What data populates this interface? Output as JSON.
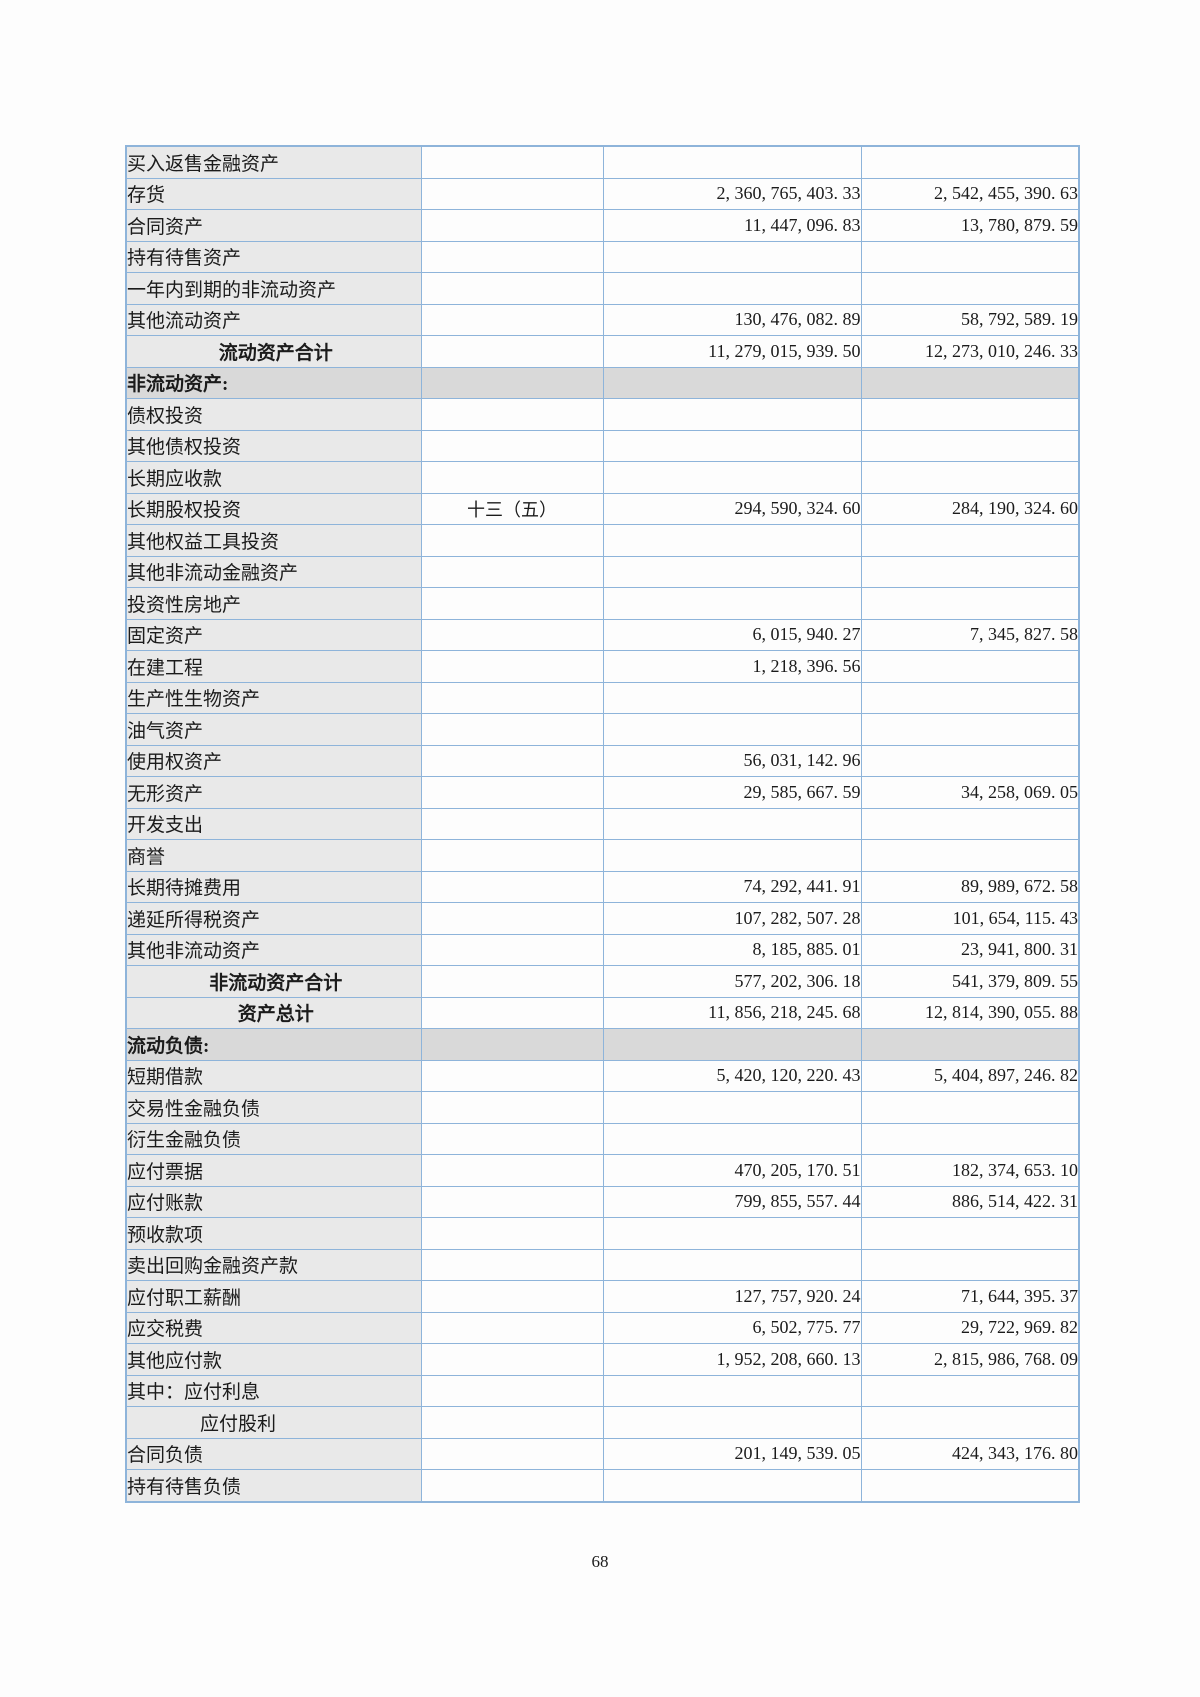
{
  "page": {
    "number": "68",
    "background_color": "#fdfdfd"
  },
  "table": {
    "name": "balance-sheet",
    "border_color": "#8eb4da",
    "item_cell_bg": "#e9e9e9",
    "section_row_bg": "#d9d9d9",
    "columns": [
      "item",
      "note",
      "current_amount",
      "previous_amount"
    ],
    "rows": [
      {
        "style": "item",
        "indent": false,
        "label": "买入返售金融资产",
        "note": "",
        "current": "",
        "previous": ""
      },
      {
        "style": "item",
        "indent": false,
        "label": "存货",
        "note": "",
        "current": "2, 360, 765, 403. 33",
        "previous": "2, 542, 455, 390. 63"
      },
      {
        "style": "item",
        "indent": false,
        "label": "合同资产",
        "note": "",
        "current": "11, 447, 096. 83",
        "previous": "13, 780, 879. 59"
      },
      {
        "style": "item",
        "indent": false,
        "label": "持有待售资产",
        "note": "",
        "current": "",
        "previous": ""
      },
      {
        "style": "item",
        "indent": false,
        "label": "一年内到期的非流动资产",
        "note": "",
        "current": "",
        "previous": ""
      },
      {
        "style": "item",
        "indent": false,
        "label": "其他流动资产",
        "note": "",
        "current": "130, 476, 082. 89",
        "previous": "58, 792, 589. 19"
      },
      {
        "style": "total",
        "indent": false,
        "label": "流动资产合计",
        "note": "",
        "current": "11, 279, 015, 939. 50",
        "previous": "12, 273, 010, 246. 33"
      },
      {
        "style": "section",
        "indent": false,
        "label": "非流动资产:",
        "note": "",
        "current": "",
        "previous": ""
      },
      {
        "style": "item",
        "indent": false,
        "label": "债权投资",
        "note": "",
        "current": "",
        "previous": ""
      },
      {
        "style": "item",
        "indent": false,
        "label": "其他债权投资",
        "note": "",
        "current": "",
        "previous": ""
      },
      {
        "style": "item",
        "indent": false,
        "label": "长期应收款",
        "note": "",
        "current": "",
        "previous": ""
      },
      {
        "style": "item",
        "indent": false,
        "label": "长期股权投资",
        "note": "十三（五）",
        "current": "294, 590, 324. 60",
        "previous": "284, 190, 324. 60"
      },
      {
        "style": "item",
        "indent": false,
        "label": "其他权益工具投资",
        "note": "",
        "current": "",
        "previous": ""
      },
      {
        "style": "item",
        "indent": false,
        "label": "其他非流动金融资产",
        "note": "",
        "current": "",
        "previous": ""
      },
      {
        "style": "item",
        "indent": false,
        "label": "投资性房地产",
        "note": "",
        "current": "",
        "previous": ""
      },
      {
        "style": "item",
        "indent": false,
        "label": "固定资产",
        "note": "",
        "current": "6, 015, 940. 27",
        "previous": "7, 345, 827. 58"
      },
      {
        "style": "item",
        "indent": false,
        "label": "在建工程",
        "note": "",
        "current": "1, 218, 396. 56",
        "previous": ""
      },
      {
        "style": "item",
        "indent": false,
        "label": "生产性生物资产",
        "note": "",
        "current": "",
        "previous": ""
      },
      {
        "style": "item",
        "indent": false,
        "label": "油气资产",
        "note": "",
        "current": "",
        "previous": ""
      },
      {
        "style": "item",
        "indent": false,
        "label": "使用权资产",
        "note": "",
        "current": "56, 031, 142. 96",
        "previous": ""
      },
      {
        "style": "item",
        "indent": false,
        "label": "无形资产",
        "note": "",
        "current": "29, 585, 667. 59",
        "previous": "34, 258, 069. 05"
      },
      {
        "style": "item",
        "indent": false,
        "label": "开发支出",
        "note": "",
        "current": "",
        "previous": ""
      },
      {
        "style": "item",
        "indent": false,
        "label": "商誉",
        "note": "",
        "current": "",
        "previous": ""
      },
      {
        "style": "item",
        "indent": false,
        "label": "长期待摊费用",
        "note": "",
        "current": "74, 292, 441. 91",
        "previous": "89, 989, 672. 58"
      },
      {
        "style": "item",
        "indent": false,
        "label": "递延所得税资产",
        "note": "",
        "current": "107, 282, 507. 28",
        "previous": "101, 654, 115. 43"
      },
      {
        "style": "item",
        "indent": false,
        "label": "其他非流动资产",
        "note": "",
        "current": "8, 185, 885. 01",
        "previous": "23, 941, 800. 31"
      },
      {
        "style": "total",
        "indent": false,
        "label": "非流动资产合计",
        "note": "",
        "current": "577, 202, 306. 18",
        "previous": "541, 379, 809. 55"
      },
      {
        "style": "total",
        "indent": false,
        "label": "资产总计",
        "note": "",
        "current": "11, 856, 218, 245. 68",
        "previous": "12, 814, 390, 055. 88"
      },
      {
        "style": "section",
        "indent": false,
        "label": "流动负债:",
        "note": "",
        "current": "",
        "previous": ""
      },
      {
        "style": "item",
        "indent": false,
        "label": "短期借款",
        "note": "",
        "current": "5, 420, 120, 220. 43",
        "previous": "5, 404, 897, 246. 82"
      },
      {
        "style": "item",
        "indent": false,
        "label": "交易性金融负债",
        "note": "",
        "current": "",
        "previous": ""
      },
      {
        "style": "item",
        "indent": false,
        "label": "衍生金融负债",
        "note": "",
        "current": "",
        "previous": ""
      },
      {
        "style": "item",
        "indent": false,
        "label": "应付票据",
        "note": "",
        "current": "470, 205, 170. 51",
        "previous": "182, 374, 653. 10"
      },
      {
        "style": "item",
        "indent": false,
        "label": "应付账款",
        "note": "",
        "current": "799, 855, 557. 44",
        "previous": "886, 514, 422. 31"
      },
      {
        "style": "item",
        "indent": false,
        "label": "预收款项",
        "note": "",
        "current": "",
        "previous": ""
      },
      {
        "style": "item",
        "indent": false,
        "label": "卖出回购金融资产款",
        "note": "",
        "current": "",
        "previous": ""
      },
      {
        "style": "item",
        "indent": false,
        "label": "应付职工薪酬",
        "note": "",
        "current": "127, 757, 920. 24",
        "previous": "71, 644, 395. 37"
      },
      {
        "style": "item",
        "indent": false,
        "label": "应交税费",
        "note": "",
        "current": "6, 502, 775. 77",
        "previous": "29, 722, 969. 82"
      },
      {
        "style": "item",
        "indent": false,
        "label": "其他应付款",
        "note": "",
        "current": "1, 952, 208, 660. 13",
        "previous": "2, 815, 986, 768. 09"
      },
      {
        "style": "item",
        "indent": false,
        "label": "其中：应付利息",
        "note": "",
        "current": "",
        "previous": ""
      },
      {
        "style": "item",
        "indent": true,
        "label": "应付股利",
        "note": "",
        "current": "",
        "previous": ""
      },
      {
        "style": "item",
        "indent": false,
        "label": "合同负债",
        "note": "",
        "current": "201, 149, 539. 05",
        "previous": "424, 343, 176. 80"
      },
      {
        "style": "item",
        "indent": false,
        "label": "持有待售负债",
        "note": "",
        "current": "",
        "previous": ""
      }
    ]
  }
}
